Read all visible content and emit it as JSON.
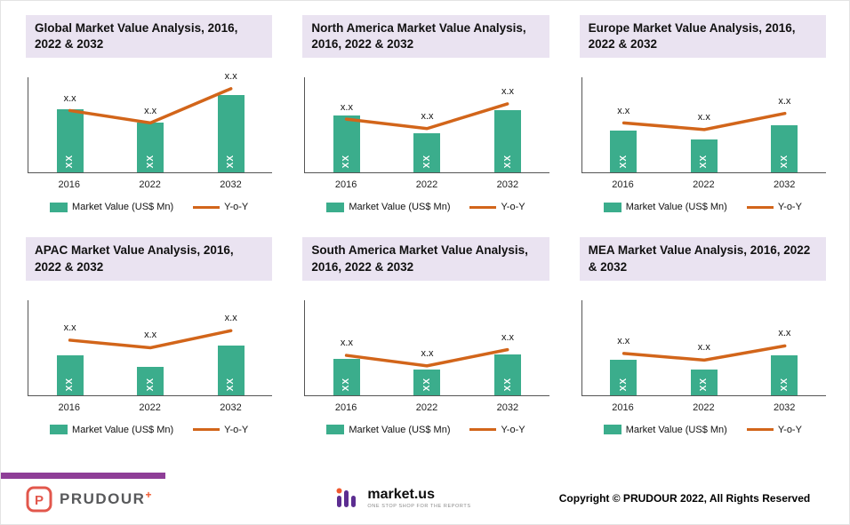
{
  "colors": {
    "bar": "#3BAD8C",
    "line": "#D2651A",
    "banner_bg": "#EAE3F1",
    "axis": "#555555",
    "footer_accent": "#8E3E97",
    "prudour_red": "#E2574C",
    "prudour_orange": "#F0582F",
    "marketus_purple": "#5C2D91",
    "marketus_orange": "#F0582F"
  },
  "legend": {
    "bar_label": "Market Value (US$ Mn)",
    "line_label": "Y-o-Y"
  },
  "chart_data": [
    {
      "type": "bar+line",
      "title": "Global Market Value Analysis, 2016, 2022 & 2032",
      "categories": [
        "2016",
        "2022",
        "2032"
      ],
      "series": [
        {
          "name": "Market Value (US$ Mn)",
          "type": "bar",
          "value_labels": [
            "XX",
            "XX",
            "XX"
          ],
          "heights_pct": [
            67,
            53,
            82
          ]
        },
        {
          "name": "Y-o-Y",
          "type": "line",
          "value_labels": [
            "x.x",
            "x.x",
            "x.x"
          ],
          "heights_pct": [
            65,
            52,
            88
          ]
        }
      ]
    },
    {
      "type": "bar+line",
      "title": "North America Market Value Analysis, 2016, 2022 & 2032",
      "categories": [
        "2016",
        "2022",
        "2032"
      ],
      "series": [
        {
          "name": "Market Value (US$ Mn)",
          "type": "bar",
          "value_labels": [
            "XX",
            "XX",
            "XX"
          ],
          "heights_pct": [
            60,
            42,
            66
          ]
        },
        {
          "name": "Y-o-Y",
          "type": "line",
          "value_labels": [
            "x.x",
            "x.x",
            "x.x"
          ],
          "heights_pct": [
            56,
            46,
            72
          ]
        }
      ]
    },
    {
      "type": "bar+line",
      "title": "Europe Market Value Analysis, 2016, 2022 & 2032",
      "categories": [
        "2016",
        "2022",
        "2032"
      ],
      "series": [
        {
          "name": "Market Value (US$ Mn)",
          "type": "bar",
          "value_labels": [
            "XX",
            "XX",
            "XX"
          ],
          "heights_pct": [
            44,
            35,
            50
          ]
        },
        {
          "name": "Y-o-Y",
          "type": "line",
          "value_labels": [
            "x.x",
            "x.x",
            "x.x"
          ],
          "heights_pct": [
            52,
            45,
            62
          ]
        }
      ]
    },
    {
      "type": "bar+line",
      "title": "APAC Market Value Analysis, 2016, 2022 & 2032",
      "categories": [
        "2016",
        "2022",
        "2032"
      ],
      "series": [
        {
          "name": "Market Value (US$ Mn)",
          "type": "bar",
          "value_labels": [
            "XX",
            "XX",
            "XX"
          ],
          "heights_pct": [
            42,
            30,
            52
          ]
        },
        {
          "name": "Y-o-Y",
          "type": "line",
          "value_labels": [
            "x.x",
            "x.x",
            "x.x"
          ],
          "heights_pct": [
            58,
            50,
            68
          ]
        }
      ]
    },
    {
      "type": "bar+line",
      "title": "South America Market Value Analysis, 2016, 2022 & 2032",
      "categories": [
        "2016",
        "2022",
        "2032"
      ],
      "series": [
        {
          "name": "Market Value (US$ Mn)",
          "type": "bar",
          "value_labels": [
            "XX",
            "XX",
            "XX"
          ],
          "heights_pct": [
            38,
            27,
            43
          ]
        },
        {
          "name": "Y-o-Y",
          "type": "line",
          "value_labels": [
            "x.x",
            "x.x",
            "x.x"
          ],
          "heights_pct": [
            42,
            31,
            48
          ]
        }
      ]
    },
    {
      "type": "bar+line",
      "title": "MEA Market Value Analysis, 2016, 2022 & 2032",
      "categories": [
        "2016",
        "2022",
        "2032"
      ],
      "series": [
        {
          "name": "Market Value (US$ Mn)",
          "type": "bar",
          "value_labels": [
            "XX",
            "XX",
            "XX"
          ],
          "heights_pct": [
            37,
            27,
            42
          ]
        },
        {
          "name": "Y-o-Y",
          "type": "line",
          "value_labels": [
            "x.x",
            "x.x",
            "x.x"
          ],
          "heights_pct": [
            44,
            37,
            52
          ]
        }
      ]
    }
  ],
  "footer": {
    "prudour_label": "PRUDOUR",
    "prudour_plus": "+",
    "marketus_label": "market.us",
    "marketus_tagline": "ONE STOP SHOP FOR THE REPORTS",
    "copyright": "Copyright © PRUDOUR 2022, All Rights Reserved"
  }
}
